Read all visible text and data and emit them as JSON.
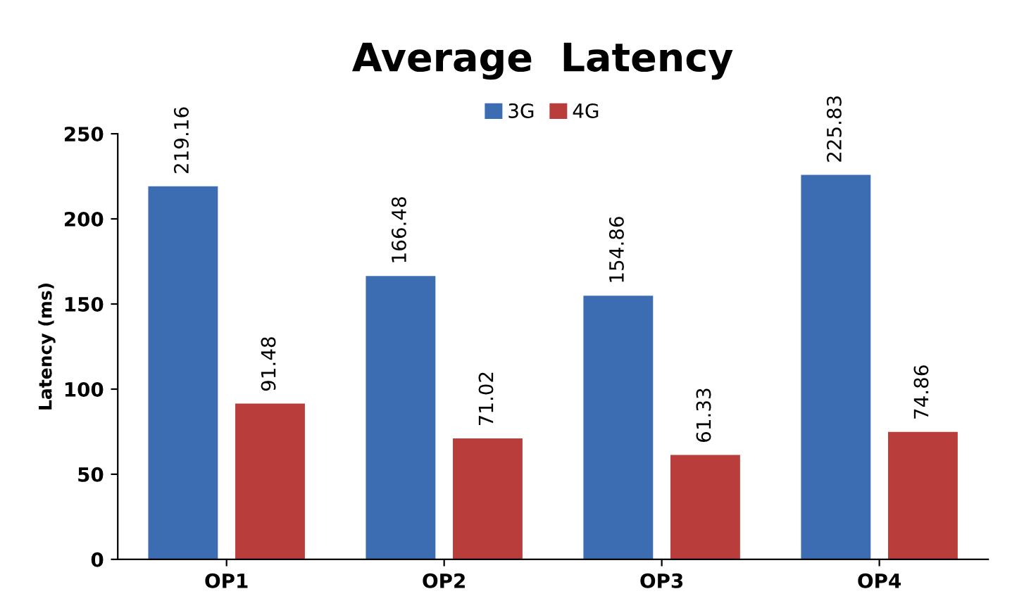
{
  "chart_data": {
    "type": "bar",
    "title": "Average  Latency",
    "ylabel": "Latency (ms)",
    "categories": [
      "OP1",
      "OP2",
      "OP3",
      "OP4"
    ],
    "series": [
      {
        "name": "3G",
        "color": "#3c6db3",
        "values": [
          219.16,
          166.48,
          154.86,
          225.83
        ]
      },
      {
        "name": "4G",
        "color": "#b83d3b",
        "values": [
          91.48,
          71.02,
          61.33,
          74.86
        ]
      }
    ],
    "ylim": [
      0,
      250
    ],
    "yticks": [
      0,
      50,
      100,
      150,
      200,
      250
    ],
    "grid": false,
    "legend": "top",
    "data_labels": true
  }
}
